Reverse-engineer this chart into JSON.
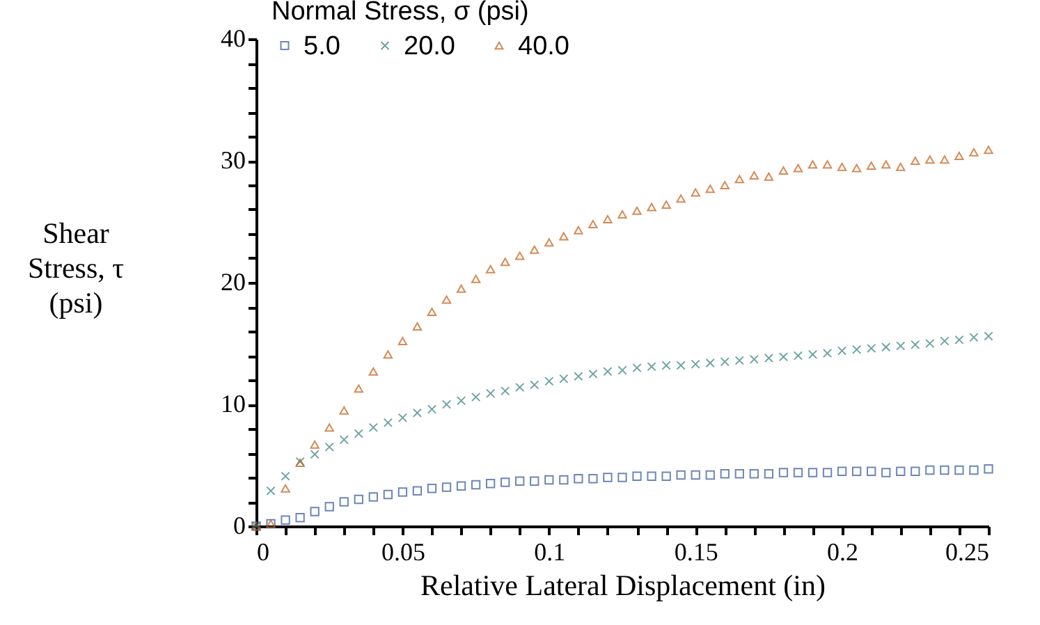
{
  "chart_data": {
    "type": "scatter",
    "xlabel": "Relative Lateral Displacement (in)",
    "ylabel": "Shear\nStress, τ\n(psi)",
    "legend_title": "Normal Stress, σ (psi)",
    "legend": "top left",
    "grid": false,
    "x": [
      0,
      0.005,
      0.01,
      0.015,
      0.02,
      0.025,
      0.03,
      0.035,
      0.04,
      0.045,
      0.05,
      0.055,
      0.06,
      0.065,
      0.07,
      0.075,
      0.08,
      0.085,
      0.09,
      0.095,
      0.1,
      0.105,
      0.11,
      0.115,
      0.12,
      0.125,
      0.13,
      0.135,
      0.14,
      0.145,
      0.15,
      0.155,
      0.16,
      0.165,
      0.17,
      0.175,
      0.18,
      0.185,
      0.19,
      0.195,
      0.2,
      0.205,
      0.21,
      0.215,
      0.22,
      0.225,
      0.23,
      0.235,
      0.24,
      0.245,
      0.25
    ],
    "xlim": [
      0,
      0.25
    ],
    "xticks": [
      0,
      {
        "value": 0.01,
        "label": null
      },
      {
        "value": 0.02,
        "label": null
      },
      {
        "value": 0.03,
        "label": null
      },
      {
        "value": 0.04,
        "label": null
      },
      0.05,
      {
        "value": 0.06,
        "label": null
      },
      {
        "value": 0.07,
        "label": null
      },
      {
        "value": 0.08,
        "label": null
      },
      {
        "value": 0.09,
        "label": null
      },
      0.1,
      {
        "value": 0.11,
        "label": null
      },
      {
        "value": 0.12,
        "label": null
      },
      {
        "value": 0.13,
        "label": null
      },
      {
        "value": 0.14,
        "label": null
      },
      0.15,
      {
        "value": 0.16,
        "label": null
      },
      {
        "value": 0.17,
        "label": null
      },
      {
        "value": 0.18,
        "label": null
      },
      {
        "value": 0.19,
        "label": null
      },
      0.2,
      {
        "value": 0.21,
        "label": null
      },
      {
        "value": 0.22,
        "label": null
      },
      {
        "value": 0.23,
        "label": null
      },
      {
        "value": 0.24,
        "label": null
      },
      0.25
    ],
    "ylim": [
      0,
      40
    ],
    "yticks": [
      0,
      {
        "value": 2,
        "label": null
      },
      {
        "value": 4,
        "label": null
      },
      {
        "value": 6,
        "label": null
      },
      {
        "value": 8,
        "label": null
      },
      10,
      {
        "value": 12,
        "label": null
      },
      {
        "value": 14,
        "label": null
      },
      {
        "value": 16,
        "label": null
      },
      {
        "value": 18,
        "label": null
      },
      20,
      {
        "value": 22,
        "label": null
      },
      {
        "value": 24,
        "label": null
      },
      {
        "value": 26,
        "label": null
      },
      {
        "value": 28,
        "label": null
      },
      30,
      {
        "value": 32,
        "label": null
      },
      {
        "value": 34,
        "label": null
      },
      {
        "value": 36,
        "label": null
      },
      {
        "value": 38,
        "label": null
      },
      40
    ],
    "series": [
      {
        "name": "5.0",
        "color": "#2f5597",
        "marker": "square",
        "values": [
          0,
          0.2,
          0.5,
          0.7,
          1.2,
          1.6,
          2.0,
          2.2,
          2.4,
          2.6,
          2.8,
          2.9,
          3.1,
          3.2,
          3.3,
          3.4,
          3.5,
          3.6,
          3.7,
          3.7,
          3.8,
          3.8,
          3.9,
          3.9,
          4.0,
          4.0,
          4.1,
          4.1,
          4.1,
          4.2,
          4.2,
          4.2,
          4.3,
          4.3,
          4.3,
          4.3,
          4.4,
          4.4,
          4.4,
          4.4,
          4.5,
          4.5,
          4.5,
          4.4,
          4.5,
          4.5,
          4.6,
          4.6,
          4.6,
          4.6,
          4.7
        ]
      },
      {
        "name": "20.0",
        "color": "#2e7d7a",
        "marker": "cross",
        "values": [
          0,
          2.9,
          4.1,
          5.3,
          5.9,
          6.5,
          7.1,
          7.6,
          8.1,
          8.5,
          8.9,
          9.3,
          9.6,
          10.0,
          10.3,
          10.6,
          10.9,
          11.1,
          11.4,
          11.6,
          11.9,
          12.1,
          12.3,
          12.5,
          12.7,
          12.8,
          13.0,
          13.1,
          13.2,
          13.2,
          13.3,
          13.4,
          13.5,
          13.6,
          13.7,
          13.8,
          13.9,
          14.0,
          14.1,
          14.2,
          14.4,
          14.5,
          14.6,
          14.7,
          14.8,
          14.9,
          15.0,
          15.2,
          15.3,
          15.5,
          15.6
        ]
      },
      {
        "name": "40.0",
        "color": "#c55a11",
        "marker": "triangle",
        "values": [
          0,
          0.2,
          3.1,
          5.2,
          6.7,
          8.1,
          9.5,
          11.3,
          12.7,
          14.1,
          15.2,
          16.4,
          17.6,
          18.6,
          19.5,
          20.3,
          21.1,
          21.7,
          22.2,
          22.7,
          23.3,
          23.8,
          24.3,
          24.8,
          25.2,
          25.6,
          25.9,
          26.2,
          26.4,
          26.9,
          27.4,
          27.7,
          28.0,
          28.5,
          28.8,
          28.7,
          29.2,
          29.4,
          29.7,
          29.7,
          29.5,
          29.4,
          29.6,
          29.7,
          29.5,
          30.0,
          30.1,
          30.1,
          30.4,
          30.7,
          30.9
        ]
      }
    ]
  }
}
